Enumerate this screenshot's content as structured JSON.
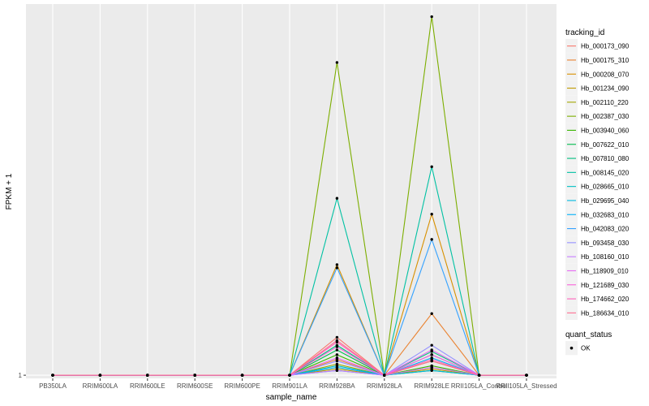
{
  "chart_data": {
    "type": "line",
    "title": "",
    "xlabel": "sample_name",
    "ylabel": "FPKM + 1",
    "grid": true,
    "legend_position": "right",
    "y_ticks": [
      "1"
    ],
    "ylim": [
      0.8,
      24.5
    ],
    "categories": [
      "PB350LA",
      "RRIM600LA",
      "RRIM600LE",
      "RRIM600SE",
      "RRIM600PE",
      "RRIM901LA",
      "RRIM928BA",
      "RRIM928LA",
      "RRIM928LE",
      "RRII105LA_Control",
      "RRII105LA_Stressed"
    ],
    "series_legend_title": "tracking_id",
    "series": [
      {
        "name": "Hb_000173_090",
        "color": "#F8766D",
        "values": [
          1,
          1,
          1,
          1,
          1,
          1,
          3.4,
          1,
          1.5,
          1,
          1
        ]
      },
      {
        "name": "Hb_000175_310",
        "color": "#EA8331",
        "values": [
          1,
          1,
          1,
          1,
          1,
          1,
          2.0,
          1,
          4.9,
          1,
          1
        ]
      },
      {
        "name": "Hb_000208_070",
        "color": "#D89000",
        "values": [
          1,
          1,
          1,
          1,
          1,
          1,
          8.0,
          1,
          11.2,
          1,
          1
        ]
      },
      {
        "name": "Hb_001234_090",
        "color": "#C09B00",
        "values": [
          1,
          1,
          1,
          1,
          1,
          1,
          1.4,
          1,
          1.4,
          1,
          1
        ]
      },
      {
        "name": "Hb_002110_220",
        "color": "#A3A500",
        "values": [
          1,
          1,
          1,
          1,
          1,
          1,
          1.7,
          1,
          1.9,
          1,
          1
        ]
      },
      {
        "name": "Hb_002387_030",
        "color": "#7CAE00",
        "values": [
          1,
          1,
          1,
          1,
          1,
          1,
          20.8,
          1,
          23.7,
          1,
          1
        ]
      },
      {
        "name": "Hb_003940_060",
        "color": "#39B600",
        "values": [
          1,
          1,
          1,
          1,
          1,
          1,
          2.3,
          1,
          1.6,
          1,
          1
        ]
      },
      {
        "name": "Hb_007622_010",
        "color": "#00BB4E",
        "values": [
          1,
          1,
          1,
          1,
          1,
          1,
          2.6,
          1,
          1.3,
          1,
          1
        ]
      },
      {
        "name": "Hb_007810_080",
        "color": "#00BF7D",
        "values": [
          1,
          1,
          1,
          1,
          1,
          1,
          2.9,
          1,
          2.5,
          1,
          1
        ]
      },
      {
        "name": "Hb_008145_020",
        "color": "#00C1A3",
        "values": [
          1,
          1,
          1,
          1,
          1,
          1,
          12.2,
          1,
          14.2,
          1,
          1
        ]
      },
      {
        "name": "Hb_028665_010",
        "color": "#00BFC4",
        "values": [
          1,
          1,
          1,
          1,
          1,
          1,
          1.6,
          1,
          2.3,
          1,
          1
        ]
      },
      {
        "name": "Hb_029695_040",
        "color": "#00BAE0",
        "values": [
          1,
          1,
          1,
          1,
          1,
          1,
          1.3,
          1,
          1.3,
          1,
          1
        ]
      },
      {
        "name": "Hb_032683_010",
        "color": "#00B0F6",
        "values": [
          1,
          1,
          1,
          1,
          1,
          1,
          1.5,
          1,
          2.1,
          1,
          1
        ]
      },
      {
        "name": "Hb_042083_020",
        "color": "#35A2FF",
        "values": [
          1,
          1,
          1,
          1,
          1,
          1,
          7.8,
          1,
          9.6,
          1,
          1
        ]
      },
      {
        "name": "Hb_093458_030",
        "color": "#9590FF",
        "values": [
          1,
          1,
          1,
          1,
          1,
          1,
          1.9,
          1,
          2.9,
          1,
          1
        ]
      },
      {
        "name": "Hb_108160_010",
        "color": "#C77CFF",
        "values": [
          1,
          1,
          1,
          1,
          1,
          1,
          1.3,
          1,
          1.5,
          1,
          1
        ]
      },
      {
        "name": "Hb_118909_010",
        "color": "#E76BF3",
        "values": [
          1,
          1,
          1,
          1,
          1,
          1,
          2.1,
          1,
          2.6,
          1,
          1
        ]
      },
      {
        "name": "Hb_121689_030",
        "color": "#FA62DB",
        "values": [
          1,
          1,
          1,
          1,
          1,
          1,
          2.8,
          1,
          2.3,
          1,
          1
        ]
      },
      {
        "name": "Hb_174662_020",
        "color": "#FF62BC",
        "values": [
          1,
          1,
          1,
          1,
          1,
          1,
          3.1,
          1,
          2.0,
          1,
          1
        ]
      },
      {
        "name": "Hb_186634_010",
        "color": "#FF6C91",
        "values": [
          1,
          1,
          1,
          1,
          1,
          1,
          3.2,
          1,
          1.9,
          1,
          1
        ]
      }
    ],
    "points_legend_title": "quant_status",
    "points_legend": [
      {
        "label": "OK",
        "color": "#000000"
      }
    ]
  }
}
